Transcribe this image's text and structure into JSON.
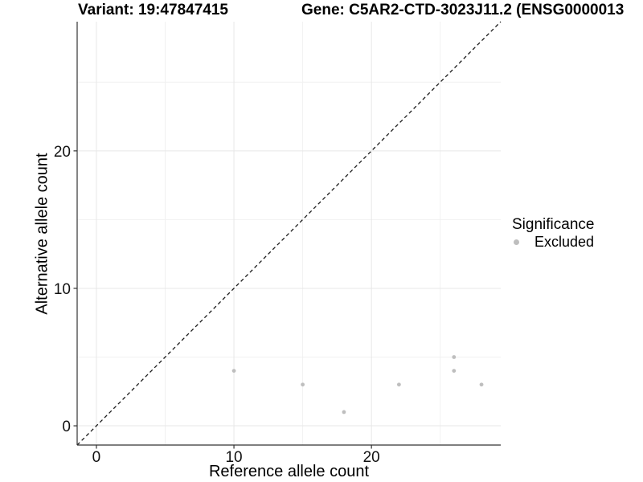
{
  "chart_data": {
    "type": "scatter",
    "titles": {
      "variant": "Variant: 19:47847415",
      "gene": "Gene: C5AR2-CTD-3023J11.2 (ENSG0000013"
    },
    "xlabel": "Reference allele count",
    "ylabel": "Alternative allele count",
    "xlim": [
      -1.4,
      29.4
    ],
    "ylim": [
      -1.4,
      29.4
    ],
    "x_ticks": [
      0,
      10,
      20
    ],
    "y_ticks": [
      0,
      10,
      20
    ],
    "x_minor_gridlines": [
      5,
      15,
      25
    ],
    "y_minor_gridlines": [
      5,
      15,
      25
    ],
    "grid": true,
    "series": [
      {
        "name": "Excluded",
        "color": "#bebebe",
        "points": [
          [
            10,
            4
          ],
          [
            15,
            3
          ],
          [
            18,
            1
          ],
          [
            22,
            3
          ],
          [
            26,
            4
          ],
          [
            26,
            5
          ],
          [
            28,
            3
          ]
        ]
      }
    ],
    "identity_line": {
      "slope": 1,
      "intercept": 0,
      "style": "dashed",
      "color": "#1a1a1a"
    },
    "legend": {
      "position": "right",
      "title": "Significance",
      "items": [
        {
          "label": "Excluded",
          "color": "#bebebe"
        }
      ]
    },
    "colors": {
      "grid_major": "#e7e7e7",
      "grid_minor": "#f1f1f1",
      "axis_line": "#333333",
      "tick_label": "#111111",
      "point": "#bebebe"
    },
    "point_radius": 2.4,
    "tick_font_size": 19
  }
}
